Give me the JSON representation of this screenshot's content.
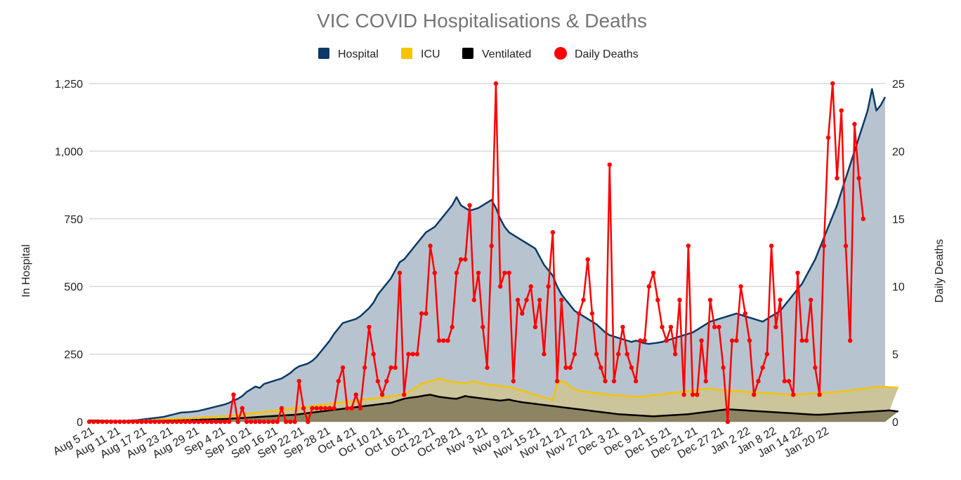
{
  "chart_data": {
    "type": "area",
    "title": "VIC COVID Hospitalisations & Deaths",
    "ylabel_left": "In Hospital",
    "ylabel_right": "Daily Deaths",
    "ylim_left": [
      0,
      1250
    ],
    "ylim_right": [
      0,
      25
    ],
    "yticks_left": [
      "0",
      "250",
      "500",
      "750",
      "1,000",
      "1,250"
    ],
    "yticks_right": [
      "0",
      "5",
      "10",
      "15",
      "20",
      "25"
    ],
    "grid": true,
    "legend_position": "top-center",
    "x_start": "2021-08-05",
    "x_end": "2022-01-20",
    "xtick_labels": [
      "Aug 5 21",
      "Aug 11 21",
      "Aug 17 21",
      "Aug 23 21",
      "Aug 29 21",
      "Sep 4 21",
      "Sep 10 21",
      "Sep 16 21",
      "Sep 22 21",
      "Sep 28 21",
      "Oct 4 21",
      "Oct 10 21",
      "Oct 16 21",
      "Oct 22 21",
      "Oct 28 21",
      "Nov 3 21",
      "Nov 9 21",
      "Nov 15 21",
      "Nov 21 21",
      "Nov 27 21",
      "Dec 3 21",
      "Dec 9 21",
      "Dec 15 21",
      "Dec 21 21",
      "Dec 27 21",
      "Jan 2 22",
      "Jan 8 22",
      "Jan 14 22",
      "Jan 20 22"
    ],
    "series": [
      {
        "name": "Hospital",
        "axis": "left",
        "style": "area",
        "color": "#0b3a66",
        "fill": "#b7c4d0",
        "values": [
          5,
          5,
          5,
          4,
          4,
          3,
          3,
          3,
          3,
          4,
          5,
          6,
          8,
          10,
          12,
          14,
          16,
          18,
          22,
          26,
          30,
          34,
          35,
          36,
          38,
          40,
          44,
          48,
          52,
          56,
          60,
          64,
          70,
          78,
          85,
          95,
          110,
          120,
          130,
          125,
          140,
          145,
          150,
          155,
          160,
          170,
          180,
          195,
          205,
          210,
          215,
          225,
          240,
          260,
          280,
          300,
          325,
          345,
          365,
          370,
          375,
          380,
          390,
          405,
          420,
          440,
          470,
          490,
          510,
          530,
          560,
          590,
          600,
          620,
          640,
          660,
          680,
          700,
          710,
          720,
          740,
          760,
          780,
          800,
          830,
          800,
          790,
          780,
          785,
          790,
          800,
          810,
          820,
          790,
          750,
          720,
          700,
          690,
          680,
          670,
          660,
          650,
          640,
          610,
          580,
          560,
          540,
          500,
          470,
          450,
          430,
          410,
          400,
          390,
          380,
          370,
          360,
          345,
          330,
          320,
          315,
          310,
          305,
          300,
          295,
          300,
          295,
          290,
          288,
          290,
          292,
          295,
          300,
          305,
          310,
          315,
          320,
          325,
          330,
          340,
          350,
          360,
          370,
          375,
          380,
          385,
          390,
          395,
          400,
          395,
          390,
          385,
          380,
          375,
          370,
          380,
          390,
          400,
          410,
          430,
          450,
          470,
          490,
          510,
          540,
          570,
          600,
          640,
          680,
          720,
          760,
          800,
          850,
          900,
          950,
          1000,
          1050,
          1100,
          1150,
          1230,
          1150,
          1170,
          1200
        ]
      },
      {
        "name": "ICU",
        "axis": "left",
        "style": "area",
        "color": "#f5c400",
        "fill": "#ccc49a",
        "values": [
          3,
          3,
          3,
          3,
          3,
          2,
          2,
          2,
          2,
          2,
          3,
          3,
          4,
          5,
          5,
          6,
          7,
          8,
          9,
          10,
          11,
          12,
          12,
          13,
          14,
          15,
          16,
          17,
          18,
          19,
          20,
          21,
          22,
          23,
          25,
          27,
          29,
          31,
          33,
          34,
          36,
          38,
          40,
          42,
          44,
          46,
          48,
          50,
          52,
          54,
          56,
          58,
          60,
          62,
          64,
          66,
          68,
          70,
          72,
          74,
          76,
          78,
          80,
          82,
          84,
          86,
          88,
          90,
          92,
          94,
          96,
          98,
          100,
          110,
          120,
          130,
          140,
          145,
          150,
          155,
          160,
          155,
          150,
          148,
          146,
          144,
          142,
          146,
          150,
          145,
          140,
          138,
          136,
          134,
          132,
          130,
          128,
          124,
          120,
          116,
          110,
          105,
          100,
          95,
          90,
          85,
          80,
          140,
          150,
          145,
          130,
          120,
          115,
          112,
          110,
          108,
          106,
          104,
          102,
          100,
          98,
          97,
          96,
          95,
          94,
          93,
          92,
          94,
          96,
          98,
          100,
          102,
          104,
          106,
          108,
          110,
          112,
          114,
          116,
          118,
          120,
          122,
          124,
          120,
          118,
          116,
          115,
          114,
          113,
          112,
          111,
          110,
          109,
          108,
          107,
          106,
          105,
          104,
          103,
          102,
          101,
          100,
          101,
          102,
          103,
          104,
          105,
          106,
          107,
          108,
          109,
          110,
          112,
          114,
          116,
          118,
          120,
          122,
          124,
          126,
          128,
          130,
          129,
          128,
          127,
          126
        ]
      },
      {
        "name": "Ventilated",
        "axis": "left",
        "style": "area",
        "color": "#000000",
        "fill": "#8c8462",
        "values": [
          2,
          2,
          2,
          2,
          2,
          1,
          1,
          1,
          1,
          1,
          1,
          1,
          2,
          2,
          2,
          3,
          3,
          3,
          4,
          4,
          5,
          5,
          6,
          6,
          7,
          7,
          8,
          8,
          9,
          9,
          10,
          10,
          11,
          12,
          13,
          14,
          15,
          16,
          17,
          18,
          19,
          20,
          21,
          22,
          23,
          24,
          25,
          26,
          28,
          30,
          32,
          34,
          36,
          38,
          40,
          42,
          44,
          46,
          48,
          50,
          52,
          54,
          56,
          58,
          60,
          62,
          64,
          66,
          68,
          70,
          75,
          80,
          85,
          88,
          90,
          92,
          95,
          98,
          100,
          96,
          92,
          90,
          88,
          86,
          85,
          90,
          95,
          92,
          90,
          88,
          86,
          84,
          82,
          80,
          78,
          80,
          82,
          78,
          75,
          72,
          70,
          68,
          66,
          64,
          62,
          60,
          58,
          56,
          54,
          52,
          50,
          48,
          46,
          44,
          42,
          40,
          38,
          36,
          34,
          32,
          30,
          28,
          27,
          26,
          25,
          24,
          23,
          22,
          21,
          20,
          21,
          22,
          23,
          24,
          25,
          26,
          27,
          28,
          30,
          32,
          34,
          36,
          38,
          40,
          42,
          44,
          46,
          45,
          44,
          43,
          42,
          41,
          40,
          39,
          38,
          37,
          36,
          35,
          34,
          33,
          32,
          31,
          30,
          29,
          28,
          27,
          26,
          26,
          27,
          28,
          29,
          30,
          31,
          32,
          33,
          34,
          35,
          36,
          37,
          38,
          39,
          40,
          41,
          42,
          40,
          38
        ]
      },
      {
        "name": "Daily Deaths",
        "axis": "right",
        "style": "line-markers",
        "color": "#ff0000",
        "values": [
          0,
          0,
          0,
          0,
          0,
          0,
          0,
          0,
          0,
          0,
          0,
          0,
          0,
          0,
          0,
          0,
          0,
          0,
          0,
          0,
          0,
          0,
          0,
          0,
          0,
          0,
          0,
          0,
          0,
          0,
          0,
          0,
          0,
          2,
          0,
          1,
          0,
          0,
          0,
          0,
          0,
          0,
          0,
          0,
          1,
          0,
          0,
          0,
          3,
          1,
          0,
          1,
          1,
          1,
          1,
          1,
          1,
          3,
          4,
          1,
          1,
          2,
          1,
          4,
          7,
          5,
          3,
          2,
          3,
          4,
          4,
          11,
          2,
          5,
          5,
          5,
          8,
          8,
          13,
          11,
          6,
          6,
          6,
          7,
          11,
          12,
          12,
          16,
          9,
          11,
          7,
          4,
          13,
          25,
          10,
          11,
          11,
          3,
          9,
          8,
          9,
          10,
          7,
          9,
          5,
          10,
          14,
          3,
          9,
          4,
          4,
          5,
          8,
          9,
          12,
          8,
          5,
          4,
          3,
          19,
          3,
          5,
          7,
          5,
          4,
          3,
          6,
          6,
          10,
          11,
          9,
          7,
          6,
          7,
          5,
          9,
          2,
          13,
          2,
          2,
          6,
          3,
          9,
          7,
          7,
          4,
          0,
          6,
          6,
          10,
          8,
          6,
          2,
          3,
          4,
          5,
          13,
          7,
          9,
          3,
          3,
          2,
          11,
          6,
          6,
          9,
          4,
          2,
          13,
          21,
          25,
          18,
          23,
          13,
          6,
          22,
          18,
          15
        ]
      }
    ]
  }
}
